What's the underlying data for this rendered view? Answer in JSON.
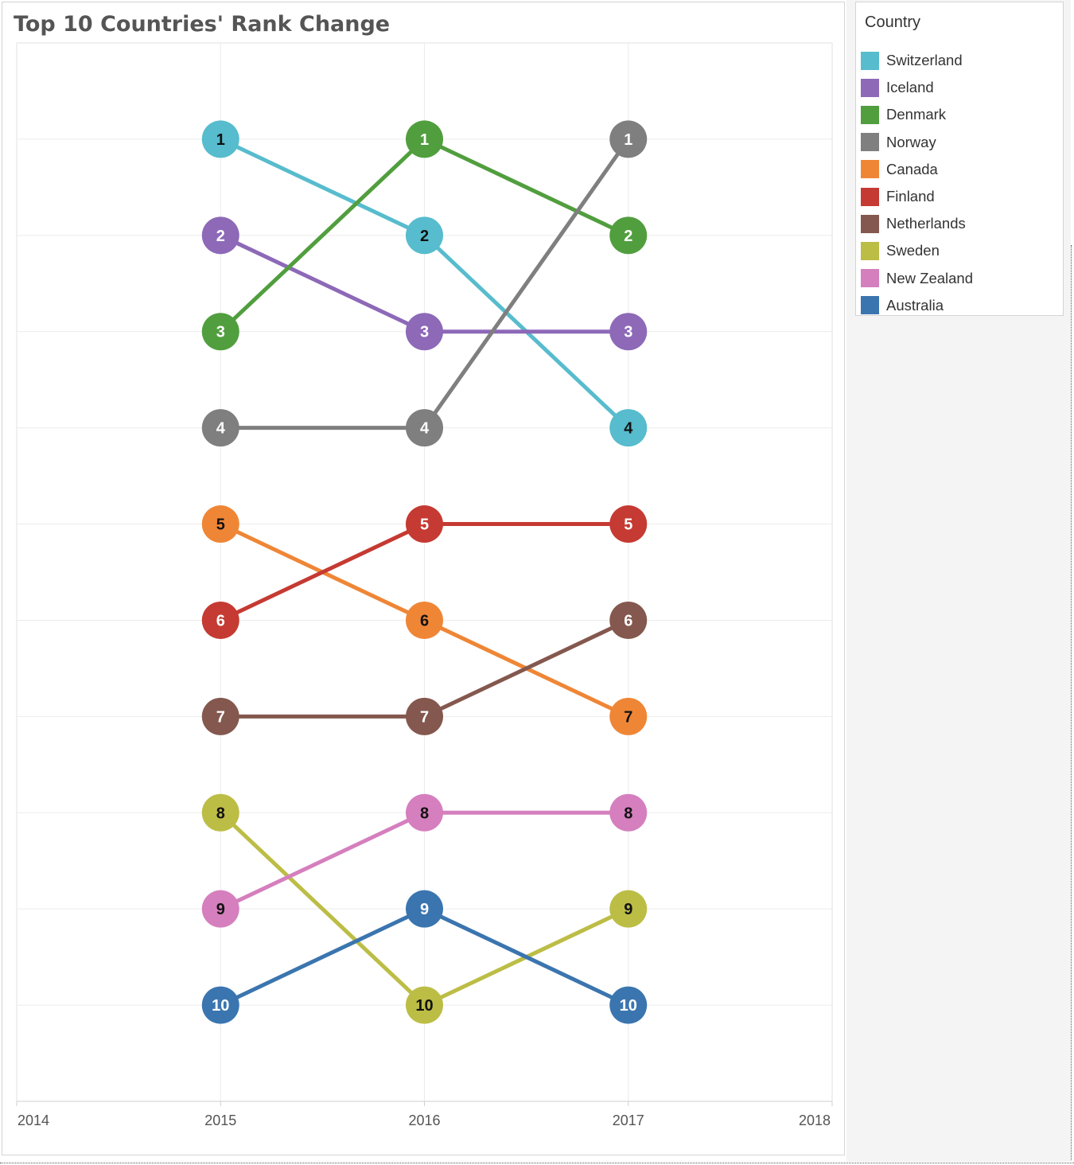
{
  "chart_data": {
    "type": "line",
    "title": "Top 10 Countries' Rank Change",
    "xlabel": "",
    "ylabel": "",
    "x_ticks": [
      "2014",
      "2015",
      "2016",
      "2017",
      "2018"
    ],
    "xlim": [
      2014,
      2018
    ],
    "ylim": [
      11,
      0
    ],
    "y_reversed": true,
    "grid": true,
    "x": [
      2015,
      2016,
      2017
    ],
    "series": [
      {
        "name": "Switzerland",
        "color": "#57bccd",
        "values": [
          1,
          2,
          4
        ]
      },
      {
        "name": "Iceland",
        "color": "#8d69b8",
        "values": [
          2,
          3,
          3
        ]
      },
      {
        "name": "Denmark",
        "color": "#519e3e",
        "values": [
          3,
          1,
          2
        ]
      },
      {
        "name": "Norway",
        "color": "#7f7f7f",
        "values": [
          4,
          4,
          1
        ]
      },
      {
        "name": "Canada",
        "color": "#ef8636",
        "values": [
          5,
          6,
          7
        ]
      },
      {
        "name": "Finland",
        "color": "#c53a32",
        "values": [
          6,
          5,
          5
        ]
      },
      {
        "name": "Netherlands",
        "color": "#84584e",
        "values": [
          7,
          7,
          6
        ]
      },
      {
        "name": "Sweden",
        "color": "#bcbd45",
        "values": [
          8,
          10,
          9
        ]
      },
      {
        "name": "New Zealand",
        "color": "#d57fbe",
        "values": [
          9,
          8,
          8
        ]
      },
      {
        "name": "Australia",
        "color": "#3b75af",
        "values": [
          10,
          9,
          10
        ]
      }
    ],
    "data_labels": true,
    "legend": {
      "title": "Country",
      "position": "right"
    }
  }
}
